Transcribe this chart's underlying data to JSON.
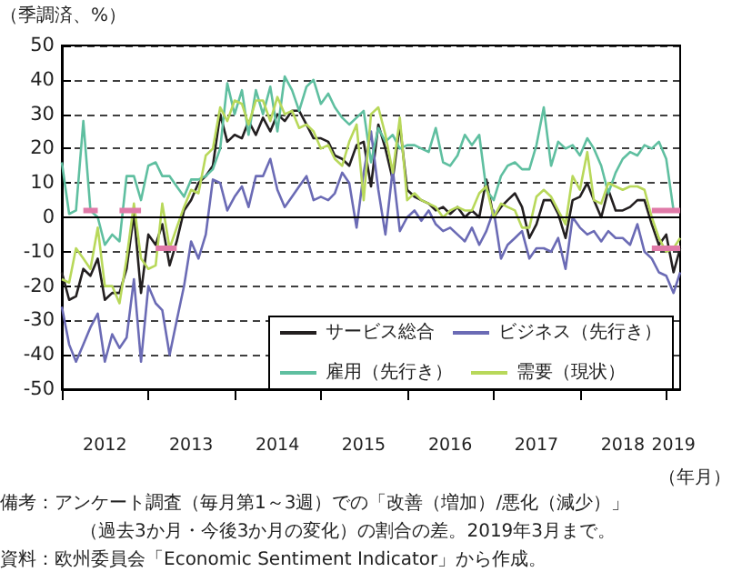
{
  "chart_data": {
    "type": "line",
    "ylabel": "（季調済、%）",
    "xlabel": "（年月）",
    "annotations": [
      "備考：アンケート調査（毎月第1～3週）での「改善（増加）/悪化（減少）」",
      "（過去3か月・今後3か月の変化）の割合の差。2019年3月まで。",
      "資料：欧州委員会「Economic Sentiment Indicator」から作成。"
    ],
    "x": [
      "2012-01",
      "2012-02",
      "2012-03",
      "2012-04",
      "2012-05",
      "2012-06",
      "2012-07",
      "2012-08",
      "2012-09",
      "2012-10",
      "2012-11",
      "2012-12",
      "2013-01",
      "2013-02",
      "2013-03",
      "2013-04",
      "2013-05",
      "2013-06",
      "2013-07",
      "2013-08",
      "2013-09",
      "2013-10",
      "2013-11",
      "2013-12",
      "2014-01",
      "2014-02",
      "2014-03",
      "2014-04",
      "2014-05",
      "2014-06",
      "2014-07",
      "2014-08",
      "2014-09",
      "2014-10",
      "2014-11",
      "2014-12",
      "2015-01",
      "2015-02",
      "2015-03",
      "2015-04",
      "2015-05",
      "2015-06",
      "2015-07",
      "2015-08",
      "2015-09",
      "2015-10",
      "2015-11",
      "2015-12",
      "2016-01",
      "2016-02",
      "2016-03",
      "2016-04",
      "2016-05",
      "2016-06",
      "2016-07",
      "2016-08",
      "2016-09",
      "2016-10",
      "2016-11",
      "2016-12",
      "2017-01",
      "2017-02",
      "2017-03",
      "2017-04",
      "2017-05",
      "2017-06",
      "2017-07",
      "2017-08",
      "2017-09",
      "2017-10",
      "2017-11",
      "2017-12",
      "2018-01",
      "2018-02",
      "2018-03",
      "2018-04",
      "2018-05",
      "2018-06",
      "2018-07",
      "2018-08",
      "2018-09",
      "2018-10",
      "2018-11",
      "2018-12",
      "2019-01",
      "2019-02",
      "2019-03"
    ],
    "series": [
      {
        "name": "サービス総合",
        "color": "#231f20",
        "values": [
          -16,
          -24,
          -23,
          -15,
          -17,
          -12,
          -24,
          -22,
          -22,
          -15,
          1,
          -22,
          -5,
          -8,
          -2,
          -14,
          -7,
          2,
          5,
          10,
          12,
          15,
          30,
          22,
          24,
          23,
          28,
          24,
          29,
          25,
          30,
          28,
          31,
          31,
          27,
          23,
          23,
          22,
          18,
          17,
          15,
          21,
          22,
          9,
          27,
          20,
          11,
          27,
          8,
          6,
          5,
          4,
          2,
          3,
          1,
          3,
          0,
          2,
          0,
          11,
          0,
          3,
          5,
          7,
          3,
          -6,
          -2,
          5,
          5,
          1,
          -6,
          5,
          6,
          10,
          5,
          0,
          8,
          2,
          2,
          3,
          5,
          5,
          -2,
          -8,
          -5,
          -16,
          -9
        ]
      },
      {
        "name": "ビジネス（先行き）",
        "color": "#6b6bb5",
        "values": [
          -26,
          -37,
          -42,
          -37,
          -32,
          -28,
          -42,
          -34,
          -38,
          -35,
          -18,
          -42,
          -20,
          -25,
          -27,
          -40,
          -30,
          -20,
          -7,
          -12,
          -5,
          11,
          10,
          2,
          6,
          9,
          3,
          12,
          12,
          17,
          8,
          3,
          6,
          9,
          12,
          5,
          6,
          5,
          7,
          13,
          10,
          -3,
          13,
          25,
          8,
          -5,
          14,
          -4,
          0,
          2,
          -1,
          2,
          -2,
          -4,
          -3,
          -5,
          -7,
          -3,
          -8,
          -4,
          2,
          -12,
          -8,
          -6,
          -4,
          -12,
          -9,
          -9,
          -10,
          -6,
          -15,
          0,
          -3,
          -5,
          -4,
          -7,
          -4,
          -6,
          -6,
          -8,
          -2,
          -10,
          -12,
          -16,
          -17,
          -22,
          -16
        ]
      },
      {
        "name": "雇用（先行き）",
        "color": "#5fbfa0",
        "values": [
          16,
          1,
          2,
          28,
          2,
          0,
          -8,
          -5,
          -7,
          12,
          12,
          5,
          15,
          16,
          12,
          12,
          9,
          6,
          11,
          11,
          12,
          14,
          20,
          39,
          30,
          37,
          24,
          37,
          30,
          38,
          25,
          41,
          37,
          31,
          38,
          40,
          33,
          36,
          32,
          29,
          27,
          29,
          31,
          16,
          26,
          22,
          24,
          20,
          21,
          21,
          20,
          19,
          26,
          16,
          15,
          18,
          24,
          21,
          24,
          8,
          5,
          12,
          15,
          16,
          14,
          14,
          21,
          32,
          15,
          22,
          20,
          21,
          18,
          23,
          20,
          15,
          7,
          13,
          17,
          19,
          18,
          21,
          20,
          22,
          17,
          2,
          null
        ]
      },
      {
        "name": "需要（現状）",
        "color": "#b8d85a",
        "values": [
          -18,
          -19,
          -9,
          -12,
          -15,
          -3,
          -20,
          -20,
          -25,
          -12,
          4,
          -12,
          -15,
          -14,
          4,
          -9,
          -3,
          3,
          8,
          7,
          18,
          20,
          32,
          28,
          34,
          33,
          27,
          34,
          34,
          28,
          35,
          30,
          31,
          26,
          27,
          25,
          20,
          21,
          17,
          15,
          22,
          27,
          5,
          30,
          32,
          24,
          13,
          29,
          5,
          7,
          5,
          4,
          3,
          0,
          2,
          3,
          2,
          2,
          7,
          9,
          0,
          4,
          3,
          2,
          -3,
          -3,
          6,
          8,
          6,
          2,
          -2,
          12,
          8,
          19,
          5,
          4,
          10,
          9,
          8,
          9,
          9,
          8,
          0,
          -6,
          -10,
          -9,
          -6
        ]
      },
      {
        "color": "#e07aa8",
        "x": [
          "2012-04",
          "2012-06",
          "2012-07",
          "2012-09",
          "2012-12",
          "2013-01",
          "2018-11",
          "2019-03"
        ],
        "values": [
          2,
          2,
          null,
          2,
          2,
          null,
          2,
          2
        ]
      },
      {
        "color": "#e07aa8",
        "x": [
          "2013-02",
          "2013-05",
          "2013-06",
          "2018-11",
          "2019-03"
        ],
        "values": [
          -9,
          -9,
          null,
          -9,
          -9
        ]
      }
    ],
    "xlim": [
      "2012-01",
      "2019-03"
    ],
    "xticks": [
      {
        "value": "2012-01",
        "label": null
      },
      {
        "value": "2012-07",
        "label": "2012"
      },
      {
        "value": "2013-01",
        "label": null
      },
      {
        "value": "2013-07",
        "label": "2013"
      },
      {
        "value": "2014-01",
        "label": null
      },
      {
        "value": "2014-07",
        "label": "2014"
      },
      {
        "value": "2015-01",
        "label": null
      },
      {
        "value": "2015-07",
        "label": "2015"
      },
      {
        "value": "2016-01",
        "label": null
      },
      {
        "value": "2016-07",
        "label": "2016"
      },
      {
        "value": "2017-01",
        "label": null
      },
      {
        "value": "2017-07",
        "label": "2017"
      },
      {
        "value": "2018-01",
        "label": null
      },
      {
        "value": "2018-07",
        "label": "2018"
      },
      {
        "value": "2019-01",
        "label": null
      },
      {
        "value": "2019-02",
        "label": "2019"
      }
    ],
    "ylim": [
      -50,
      50
    ],
    "yticks": [
      -50,
      -40,
      -30,
      -20,
      -10,
      0,
      10,
      20,
      30,
      40,
      50
    ],
    "ref_lines": [
      {
        "axis": "y",
        "value": 0,
        "color": "#000000",
        "line_style": "solid"
      }
    ],
    "grid": "y",
    "legend": "bottom right",
    "marker": "none",
    "line_style": "solid"
  }
}
